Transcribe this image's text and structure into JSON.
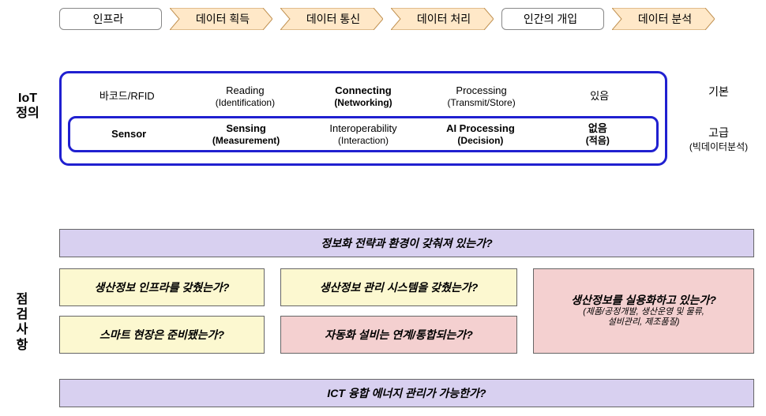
{
  "colors": {
    "tab_fill": "#ffe8c8",
    "tab_stroke": "#c09050",
    "blue_border": "#2020d0",
    "lavender": "#d8d0f0",
    "yellow": "#fcf8d0",
    "pink": "#f4d0d0",
    "box_border": "#666666"
  },
  "tabs": [
    {
      "label": "인프라",
      "style": "rounded"
    },
    {
      "label": "데이터 획득",
      "style": "arrow"
    },
    {
      "label": "데이터 통신",
      "style": "arrow"
    },
    {
      "label": "데이터 처리",
      "style": "arrow"
    },
    {
      "label": "인간의 개입",
      "style": "rounded"
    },
    {
      "label": "데이터 분석",
      "style": "arrow"
    }
  ],
  "left_labels": {
    "iot": "IoT\n정의",
    "check": "점검사항"
  },
  "iot": {
    "row_basic": [
      {
        "main": "바코드/RFID",
        "sub": "",
        "bold": false
      },
      {
        "main": "Reading",
        "sub": "(Identification)",
        "bold": false
      },
      {
        "main": "Connecting",
        "sub": "(Networking)",
        "bold": true
      },
      {
        "main": "Processing",
        "sub": "(Transmit/Store)",
        "bold": false
      },
      {
        "main": "있음",
        "sub": "",
        "bold": false
      }
    ],
    "row_adv": [
      {
        "main": "Sensor",
        "sub": "",
        "bold": true
      },
      {
        "main": "Sensing",
        "sub": "(Measurement)",
        "bold": true
      },
      {
        "main": "Interoperability",
        "sub": "(Interaction)",
        "bold": false
      },
      {
        "main": "AI Processing",
        "sub": "(Decision)",
        "bold": true
      },
      {
        "main": "없음",
        "sub": "(적음)",
        "bold": true
      }
    ]
  },
  "right": {
    "basic": "기본",
    "adv_main": "고급",
    "adv_sub": "(빅데이터분석)"
  },
  "bars": {
    "top": "정보화 전략과 환경이 갖춰져 있는가?",
    "bottom": "ICT 융합 에너지 관리가 가능한가?"
  },
  "checks": {
    "left": [
      {
        "text": "생산정보 인프라를 갖췄는가?",
        "color": "yellow"
      },
      {
        "text": "스마트 현장은 준비됐는가?",
        "color": "yellow"
      }
    ],
    "mid": [
      {
        "text": "생산정보 관리 시스템을 갖췄는가?",
        "color": "yellow"
      },
      {
        "text": "자동화 설비는 연계/통합되는가?",
        "color": "pink"
      }
    ],
    "right": {
      "text": "생산정보를 실용화하고 있는가?",
      "sub": "(제품/공정개발, 생산운영 및 물류,\n설비관리, 제조품질)",
      "color": "pink"
    }
  }
}
